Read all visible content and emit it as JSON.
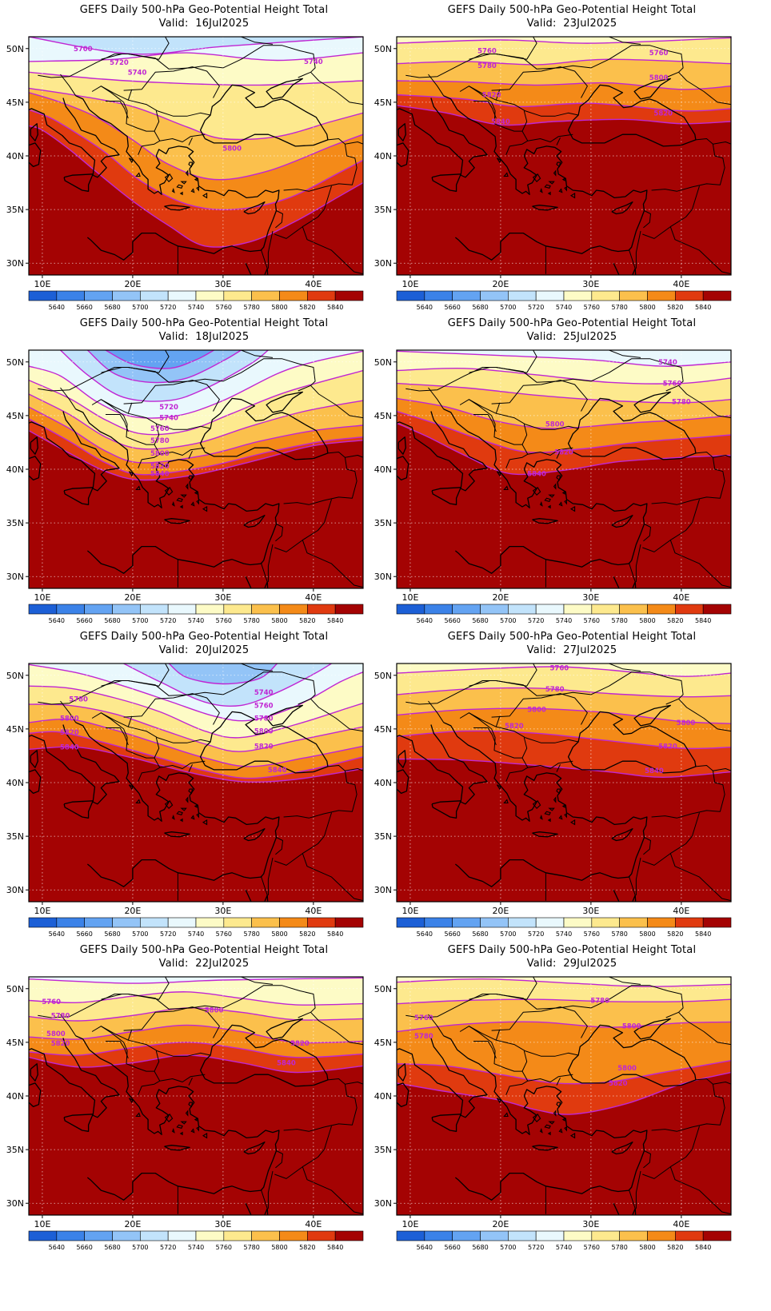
{
  "figure": {
    "panels": [
      {
        "title": "GEFS Daily 500-hPa Geo-Potential Height Total",
        "valid": "Valid:  16Jul2025",
        "labels": [
          "5700",
          "5720",
          "5740",
          "5740",
          "5800"
        ]
      },
      {
        "title": "GEFS Daily 500-hPa Geo-Potential Height Total",
        "valid": "Valid:  23Jul2025",
        "labels": [
          "5760",
          "5780",
          "5760",
          "5800",
          "5820",
          "5840",
          "5820"
        ]
      },
      {
        "title": "GEFS Daily 500-hPa Geo-Potential Height Total",
        "valid": "Valid:  18Jul2025",
        "labels": [
          "5720",
          "5740",
          "5760",
          "5780",
          "5800",
          "5820",
          "5840"
        ]
      },
      {
        "title": "GEFS Daily 500-hPa Geo-Potential Height Total",
        "valid": "Valid:  25Jul2025",
        "labels": [
          "5740",
          "5760",
          "5780",
          "5800",
          "5820",
          "5840"
        ]
      },
      {
        "title": "GEFS Daily 500-hPa Geo-Potential Height Total",
        "valid": "Valid:  20Jul2025",
        "labels": [
          "5780",
          "5800",
          "5820",
          "5740",
          "5760",
          "5780",
          "5800",
          "5820",
          "5840",
          "5840"
        ]
      },
      {
        "title": "GEFS Daily 500-hPa Geo-Potential Height Total",
        "valid": "Valid:  27Jul2025",
        "labels": [
          "5760",
          "5780",
          "5800",
          "5800",
          "5820",
          "5820",
          "5840"
        ]
      },
      {
        "title": "GEFS Daily 500-hPa Geo-Potential Height Total",
        "valid": "Valid:  22Jul2025",
        "labels": [
          "5760",
          "5780",
          "5800",
          "5820",
          "5800",
          "5820",
          "5840"
        ]
      },
      {
        "title": "GEFS Daily 500-hPa Geo-Potential Height Total",
        "valid": "Valid:  29Jul2025",
        "labels": [
          "5760",
          "5780",
          "5780",
          "5800",
          "5800",
          "5820"
        ]
      }
    ],
    "lat_labels": [
      "50N",
      "45N",
      "40N",
      "35N",
      "30N"
    ],
    "lon_labels": [
      "10E",
      "20E",
      "30E",
      "40E"
    ],
    "colorbar": {
      "levels": [
        "5640",
        "5660",
        "5680",
        "5700",
        "5720",
        "5740",
        "5760",
        "5780",
        "5800",
        "5820",
        "5840"
      ],
      "colors": [
        "#1c5fd6",
        "#3b82e8",
        "#63a3f2",
        "#93c4f7",
        "#c2e3fb",
        "#e9f8fd",
        "#fdfbc6",
        "#fde98e",
        "#fbc04c",
        "#f48a18",
        "#e03a0f",
        "#a40303"
      ]
    },
    "contour_color": "#c026d3",
    "coast_color": "#000000"
  }
}
